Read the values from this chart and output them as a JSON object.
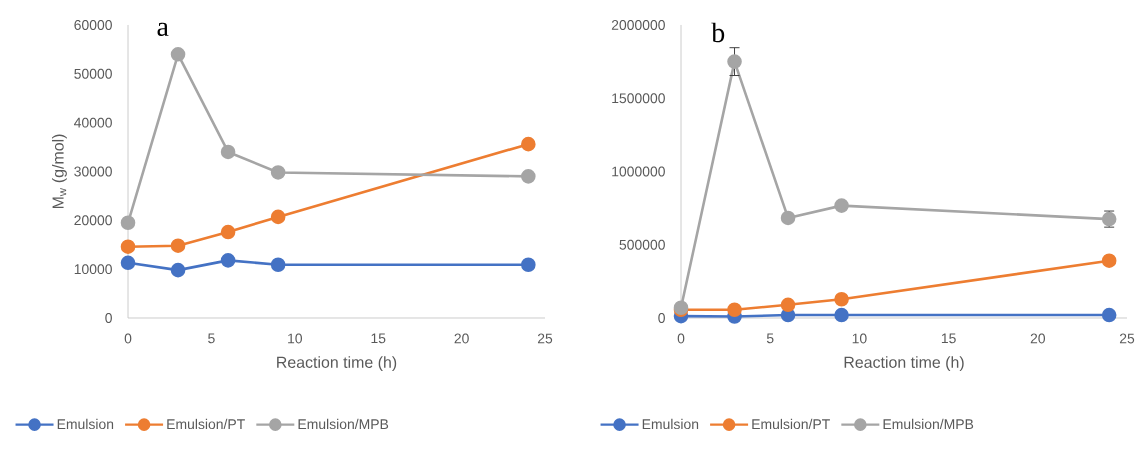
{
  "chart_data": [
    {
      "type": "line",
      "xlabel": "Reaction time (h)",
      "ylabel": "M$_{w}$ (g/mol)",
      "annotations": [
        "a"
      ],
      "x": [
        0,
        3,
        6,
        9,
        24
      ],
      "xlim": [
        0,
        25
      ],
      "xticks": [
        0,
        5,
        10,
        15,
        20,
        25
      ],
      "ylim": [
        0,
        60000
      ],
      "yticks": [
        0,
        10000,
        20000,
        30000,
        40000,
        50000,
        60000
      ],
      "legend": "bottom",
      "marker": "circle",
      "series": [
        {
          "name": "Emulsion",
          "color": "#4472c4",
          "values": [
            11300,
            9800,
            11800,
            10900,
            10900
          ]
        },
        {
          "name": "Emulsion/PT",
          "color": "#ed7d31",
          "values": [
            14600,
            14800,
            17600,
            20700,
            35600
          ]
        },
        {
          "name": "Emulsion/MPB",
          "color": "#a5a5a5",
          "values": [
            19500,
            54000,
            34000,
            29800,
            29000
          ]
        }
      ]
    },
    {
      "type": "line",
      "xlabel": "Reaction time (h)",
      "annotations": [
        "b"
      ],
      "x": [
        0,
        3,
        6,
        9,
        24
      ],
      "xlim": [
        0,
        25
      ],
      "xticks": [
        0,
        5,
        10,
        15,
        20,
        25
      ],
      "ylim": [
        0,
        2000000
      ],
      "yticks": [
        0,
        500000,
        1000000,
        1500000,
        2000000
      ],
      "legend": "bottom",
      "marker": "circle",
      "series": [
        {
          "name": "Emulsion",
          "color": "#4472c4",
          "values": [
            13000,
            10000,
            20000,
            20000,
            20000
          ]
        },
        {
          "name": "Emulsion/PT",
          "color": "#ed7d31",
          "values": [
            56000,
            56000,
            90000,
            128000,
            391000
          ]
        },
        {
          "name": "Emulsion/MPB",
          "color": "#a5a5a5",
          "values": [
            70000,
            1750000,
            683000,
            767000,
            675000
          ],
          "errors": [
            null,
            95000,
            null,
            null,
            55000
          ]
        }
      ]
    }
  ]
}
